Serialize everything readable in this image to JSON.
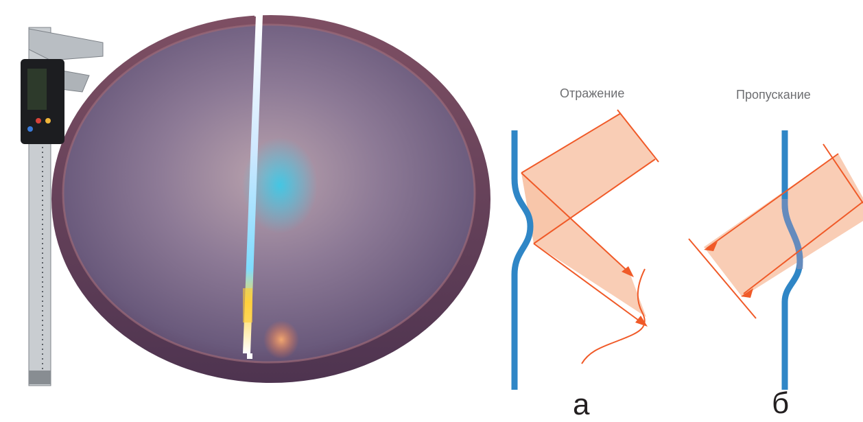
{
  "labels": {
    "reflection": "Отражение",
    "transmission": "Пропускание",
    "panel_a": "а",
    "panel_b": "б"
  },
  "colors": {
    "hologram_layer": "#2f86c6",
    "beam_line": "#f05a28",
    "beam_fill": "#f8c4a8",
    "disc_inner": "#7c6a8a",
    "disc_rim": "#5a3a55"
  },
  "icons": {
    "caliper": "digital-caliper-photo",
    "hologram": "round-holographic-plate-photo"
  }
}
